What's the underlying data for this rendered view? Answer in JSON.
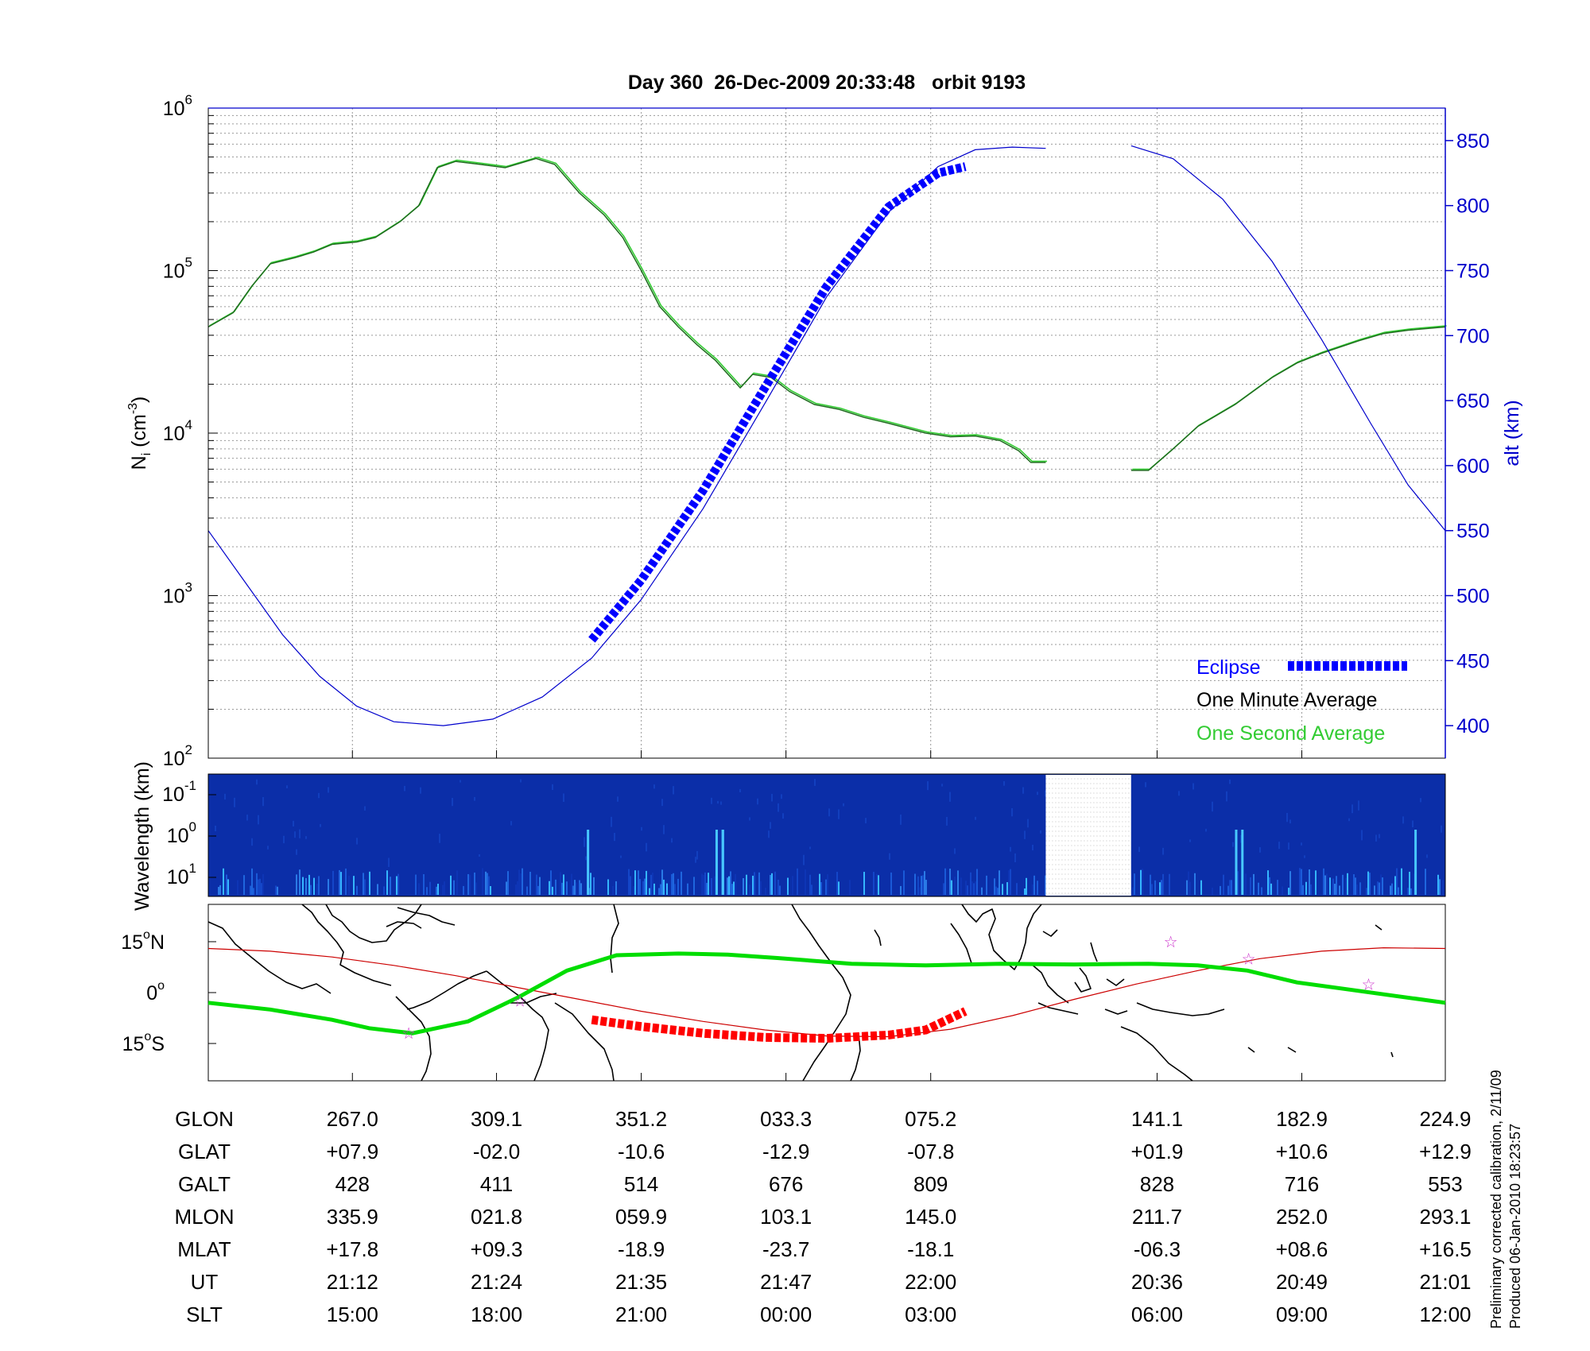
{
  "title": "Day 360  26-Dec-2009 20:33:48   orbit 9193",
  "colors": {
    "density": "#1f6b1f",
    "density_second": "#33cc33",
    "altitude": "#0000cc",
    "eclipse": "#0000ff",
    "eclipse_ground": "#ff0000",
    "orbit_track": "#cc0000",
    "magnetic_track": "#00dd00",
    "stars": "#cc33cc",
    "spectrogram_bg": "#0a2a9e"
  },
  "chart_data": [
    {
      "type": "line",
      "panel": "ion-density",
      "ylabel": "N",
      "ylabel_sub": "i",
      "ylabel_unit": "(cm",
      "ylabel_sup": "-3",
      "y2label": "alt (km)",
      "yscale": "log",
      "ylim": [
        100,
        1000000
      ],
      "y2lim": [
        375,
        875
      ],
      "y_ticks": [
        {
          "v": 100,
          "base": "10",
          "exp": "2"
        },
        {
          "v": 1000,
          "base": "10",
          "exp": "3"
        },
        {
          "v": 10000,
          "base": "10",
          "exp": "4"
        },
        {
          "v": 100000,
          "base": "10",
          "exp": "5"
        },
        {
          "v": 1000000,
          "base": "10",
          "exp": "6"
        }
      ],
      "y2_ticks": [
        "400",
        "450",
        "500",
        "550",
        "600",
        "650",
        "700",
        "750",
        "800",
        "850"
      ],
      "x_ticks": [
        0.1165,
        0.233,
        0.35,
        0.467,
        0.584,
        0.767,
        0.884
      ],
      "legend": [
        {
          "label": "Eclipse"
        },
        {
          "label": "One Minute Average"
        },
        {
          "label": "One Second Average"
        }
      ],
      "legend_position": "bottom-right",
      "grid": true,
      "series": [
        {
          "key": "density",
          "segments": [
            [
              [
                0.0,
                45000
              ],
              [
                0.02,
                55000
              ],
              [
                0.035,
                80000
              ],
              [
                0.05,
                110000
              ],
              [
                0.07,
                120000
              ],
              [
                0.085,
                130000
              ],
              [
                0.1,
                145000
              ],
              [
                0.12,
                150000
              ],
              [
                0.135,
                160000
              ],
              [
                0.155,
                200000
              ],
              [
                0.17,
                250000
              ],
              [
                0.185,
                430000
              ],
              [
                0.2,
                470000
              ],
              [
                0.22,
                450000
              ],
              [
                0.24,
                430000
              ],
              [
                0.265,
                490000
              ],
              [
                0.28,
                450000
              ],
              [
                0.3,
                300000
              ],
              [
                0.32,
                220000
              ],
              [
                0.335,
                160000
              ],
              [
                0.35,
                100000
              ],
              [
                0.365,
                60000
              ],
              [
                0.38,
                45000
              ],
              [
                0.395,
                35000
              ],
              [
                0.41,
                28000
              ],
              [
                0.43,
                19000
              ],
              [
                0.44,
                23000
              ],
              [
                0.455,
                22000
              ],
              [
                0.47,
                18000
              ],
              [
                0.49,
                15000
              ],
              [
                0.51,
                14000
              ],
              [
                0.53,
                12500
              ],
              [
                0.55,
                11500
              ],
              [
                0.58,
                10000
              ],
              [
                0.6,
                9500
              ],
              [
                0.62,
                9600
              ],
              [
                0.64,
                9000
              ],
              [
                0.655,
                7800
              ],
              [
                0.665,
                6600
              ],
              [
                0.677,
                6600
              ]
            ],
            [
              [
                0.746,
                5900
              ],
              [
                0.76,
                5900
              ],
              [
                0.78,
                8000
              ],
              [
                0.8,
                11000
              ],
              [
                0.83,
                15000
              ],
              [
                0.86,
                22000
              ],
              [
                0.88,
                27000
              ],
              [
                0.9,
                31000
              ],
              [
                0.93,
                37000
              ],
              [
                0.95,
                41000
              ],
              [
                0.97,
                43000
              ],
              [
                1.0,
                45000
              ]
            ]
          ]
        },
        {
          "key": "altitude",
          "segments": [
            [
              [
                0.0,
                550
              ],
              [
                0.03,
                510
              ],
              [
                0.06,
                470
              ],
              [
                0.09,
                438
              ],
              [
                0.12,
                415
              ],
              [
                0.15,
                403
              ],
              [
                0.19,
                400
              ],
              [
                0.23,
                405
              ],
              [
                0.27,
                422
              ],
              [
                0.31,
                452
              ],
              [
                0.35,
                497
              ],
              [
                0.4,
                567
              ],
              [
                0.45,
                648
              ],
              [
                0.5,
                730
              ],
              [
                0.55,
                795
              ],
              [
                0.59,
                830
              ],
              [
                0.62,
                843
              ],
              [
                0.65,
                845
              ],
              [
                0.677,
                844
              ]
            ],
            [
              [
                0.746,
                846
              ],
              [
                0.78,
                836
              ],
              [
                0.82,
                805
              ],
              [
                0.86,
                757
              ],
              [
                0.9,
                697
              ],
              [
                0.94,
                632
              ],
              [
                0.97,
                585
              ],
              [
                1.0,
                550
              ]
            ]
          ]
        },
        {
          "key": "eclipse",
          "segments": [
            [
              [
                0.31,
                466
              ],
              [
                0.35,
                512
              ],
              [
                0.4,
                581
              ],
              [
                0.45,
                660
              ],
              [
                0.5,
                738
              ],
              [
                0.55,
                799
              ],
              [
                0.59,
                825
              ],
              [
                0.612,
                830
              ]
            ]
          ]
        }
      ]
    },
    {
      "type": "heatmap",
      "panel": "wavelength-spectrogram",
      "ylabel": "Wavelength (km)",
      "y_ticks": [
        {
          "base": "10",
          "exp": "-1"
        },
        {
          "base": "10",
          "exp": "0"
        },
        {
          "base": "10",
          "exp": "1"
        }
      ],
      "data_gap": [
        0.677,
        0.746
      ]
    },
    {
      "type": "line",
      "panel": "ground-track-map",
      "y_ticks": [
        {
          "v": 15,
          "label": "15",
          "suffix": "N"
        },
        {
          "v": 0,
          "label": "0",
          "suffix": ""
        },
        {
          "v": -15,
          "label": "15",
          "suffix": "S"
        }
      ],
      "ylim": [
        -26,
        26
      ],
      "series": [
        {
          "key": "orbit-track",
          "points": [
            [
              0.0,
              13
            ],
            [
              0.05,
              12.2
            ],
            [
              0.1,
              10.5
            ],
            [
              0.15,
              8.0
            ],
            [
              0.2,
              5.0
            ],
            [
              0.25,
              1.5
            ],
            [
              0.3,
              -2.0
            ],
            [
              0.35,
              -5.5
            ],
            [
              0.4,
              -8.5
            ],
            [
              0.45,
              -11.0
            ],
            [
              0.5,
              -12.8
            ],
            [
              0.55,
              -13.0
            ],
            [
              0.6,
              -10.8
            ],
            [
              0.65,
              -6.8
            ],
            [
              0.7,
              -2.0
            ],
            [
              0.75,
              2.5
            ],
            [
              0.8,
              6.5
            ],
            [
              0.85,
              10.0
            ],
            [
              0.9,
              12.2
            ],
            [
              0.95,
              13.2
            ],
            [
              1.0,
              13
            ]
          ]
        },
        {
          "key": "magnetic-equator",
          "points": [
            [
              0.0,
              -3
            ],
            [
              0.05,
              -5
            ],
            [
              0.1,
              -8
            ],
            [
              0.13,
              -10.5
            ],
            [
              0.165,
              -12
            ],
            [
              0.21,
              -8.5
            ],
            [
              0.25,
              -1.5
            ],
            [
              0.29,
              6.5
            ],
            [
              0.33,
              11
            ],
            [
              0.38,
              11.5
            ],
            [
              0.42,
              11.2
            ],
            [
              0.46,
              10.2
            ],
            [
              0.52,
              8.5
            ],
            [
              0.58,
              8.0
            ],
            [
              0.64,
              8.5
            ],
            [
              0.7,
              8.3
            ],
            [
              0.76,
              8.5
            ],
            [
              0.8,
              8.0
            ],
            [
              0.84,
              6.5
            ],
            [
              0.88,
              3.0
            ],
            [
              0.92,
              1.0
            ],
            [
              0.96,
              -1.0
            ],
            [
              1.0,
              -3
            ]
          ]
        },
        {
          "key": "eclipse-ground",
          "points": [
            [
              0.31,
              -8.0
            ],
            [
              0.35,
              -10.0
            ],
            [
              0.4,
              -12.0
            ],
            [
              0.45,
              -13.2
            ],
            [
              0.5,
              -13.5
            ],
            [
              0.55,
              -12.5
            ],
            [
              0.58,
              -11.0
            ],
            [
              0.612,
              -5.5
            ]
          ]
        },
        {
          "key": "stars",
          "points": [
            [
              0.162,
              -12
            ],
            [
              0.252,
              -2.5
            ],
            [
              0.778,
              15
            ],
            [
              0.841,
              10
            ],
            [
              0.938,
              2.5
            ]
          ]
        }
      ]
    }
  ],
  "table": {
    "row_labels": [
      "GLON",
      "GLAT",
      "GALT",
      "MLON",
      "MLAT",
      "UT",
      "SLT"
    ],
    "columns": [
      [
        "267.0",
        "+07.9",
        "428",
        "335.9",
        "+17.8",
        "21:12",
        "15:00"
      ],
      [
        "309.1",
        "-02.0",
        "411",
        "021.8",
        "+09.3",
        "21:24",
        "18:00"
      ],
      [
        "351.2",
        "-10.6",
        "514",
        "059.9",
        "-18.9",
        "21:35",
        "21:00"
      ],
      [
        "033.3",
        "-12.9",
        "676",
        "103.1",
        "-23.7",
        "21:47",
        "00:00"
      ],
      [
        "075.2",
        "-07.8",
        "809",
        "145.0",
        "-18.1",
        "22:00",
        "03:00"
      ],
      [
        "141.1",
        "+01.9",
        "828",
        "211.7",
        "-06.3",
        "20:36",
        "06:00"
      ],
      [
        "182.9",
        "+10.6",
        "716",
        "252.0",
        "+08.6",
        "20:49",
        "09:00"
      ],
      [
        "224.9",
        "+12.9",
        "553",
        "293.1",
        "+16.5",
        "21:01",
        "12:00"
      ]
    ]
  },
  "footnote": {
    "line1": "Preliminary corrected calibration, 2/11/09",
    "line2": "Produced 06-Jan-2010 18:23:57"
  }
}
